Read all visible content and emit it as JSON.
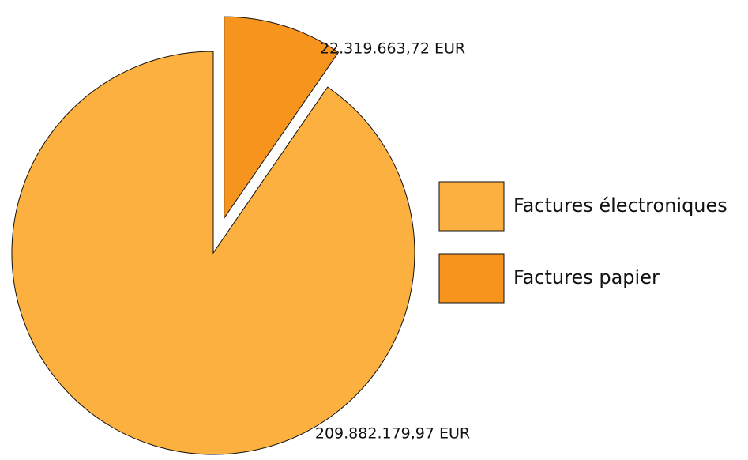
{
  "chart_data": {
    "type": "pie",
    "categories": [
      "Factures électroniques",
      "Factures papier"
    ],
    "values": [
      209882179.97,
      22319663.72
    ],
    "value_labels": [
      "209.882.179,97 EUR",
      "22.319.663,72 EUR"
    ],
    "colors": [
      "#fbb040",
      "#f7941e"
    ],
    "explode": [
      false,
      true
    ]
  }
}
